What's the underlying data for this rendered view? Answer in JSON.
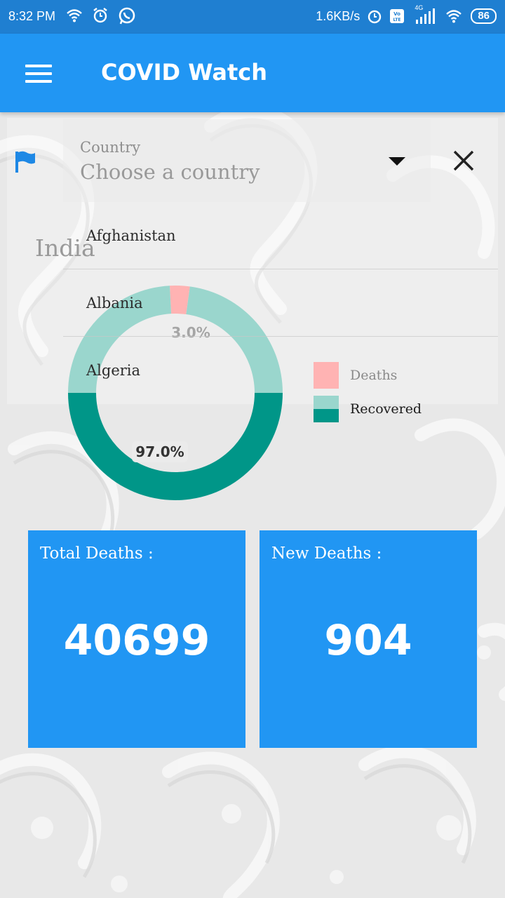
{
  "status_bar": {
    "time": "8:32 PM",
    "speed": "1.6KB/s",
    "network": "4G",
    "battery": "86",
    "icons": [
      "wifi-icon",
      "alarm-icon",
      "whatsapp-icon",
      "alarm-icon",
      "volte-icon",
      "signal-icon",
      "wifi-icon",
      "battery-icon"
    ]
  },
  "app_bar": {
    "title": "COVID Watch",
    "menu_icon": "hamburger-menu-icon"
  },
  "country_selector": {
    "label": "Country",
    "placeholder": "Choose a country",
    "flag_icon": "flag-icon",
    "clear_icon": "close-icon",
    "selected_country": "India",
    "options": [
      "Afghanistan",
      "Albania",
      "Algeria"
    ]
  },
  "chart_data": {
    "type": "pie",
    "categories": [
      "Deaths",
      "Recovered"
    ],
    "values": [
      3.0,
      97.0
    ],
    "data_labels": [
      "3.0%",
      "97.0%"
    ],
    "colors": [
      "#ffb3b3",
      "#009688"
    ],
    "legend_position": "right"
  },
  "stats": {
    "total_deaths_label": "Total Deaths :",
    "total_deaths_value": "40699",
    "new_deaths_label": "New Deaths :",
    "new_deaths_value": "904"
  },
  "colors": {
    "primary": "#2196f3",
    "status_bar": "#1f7fd1",
    "recovered": "#009688",
    "deaths": "#ffb3b3"
  }
}
